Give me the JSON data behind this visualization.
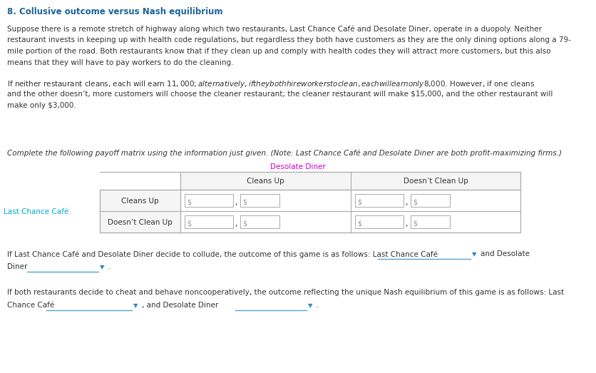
{
  "title": "8. Collusive outcome versus Nash equilibrium",
  "title_color": "#1a6496",
  "title_fontsize": 8.5,
  "background_color": "#ffffff",
  "body_text_color": "#333333",
  "body_fontsize": 7.5,
  "paragraph1_lines": [
    "Suppose there is a remote stretch of highway along which two restaurants, Last Chance Café and Desolate Diner, operate in a duopoly. Neither",
    "restaurant invests in keeping up with health code regulations, but regardless they both have customers as they are the only dining options along a 79-",
    "mile portion of the road. Both restaurants know that if they clean up and comply with health codes they will attract more customers, but this also",
    "means that they will have to pay workers to do the cleaning."
  ],
  "paragraph2_lines": [
    "If neither restaurant cleans, each will earn $11,000; alternatively, if they both hire workers to clean, each will earn only $8,000. However, if one cleans",
    "and the other doesn’t, more customers will choose the cleaner restaurant; the cleaner restaurant will make $15,000, and the other restaurant will",
    "make only $3,000."
  ],
  "matrix_intro_line": "Complete the following payoff matrix using the information just given. (Note: Last Chance Café and Desolate Diner are both profit-maximizing firms.)",
  "desolate_diner_label": "Desolate Diner",
  "desolate_diner_color": "#cc00cc",
  "last_chance_label": "Last Chance Café",
  "last_chance_color": "#00aacc",
  "col_headers": [
    "Cleans Up",
    "Doesn’t Clean Up"
  ],
  "row_headers": [
    "Cleans Up",
    "Doesn’t Clean Up"
  ],
  "collude_line1": "If Last Chance Café and Desolate Diner decide to collude, the outcome of this game is as follows: Last Chance Café",
  "collude_line1_end": "and Desolate",
  "collude_line2_start": "Diner",
  "collude_line2_dot": ".",
  "nash_line1": "If both restaurants decide to cheat and behave noncooperatively, the outcome reflecting the unique Nash equilibrium of this game is as follows: Last",
  "nash_line2_start": "Chance Café",
  "nash_line2_mid": ", and Desolate Diner",
  "nash_line2_dot": ".",
  "dropdown_color": "#2e86c1",
  "underline_color": "#5aa0d0",
  "table_border_color": "#aaaaaa",
  "input_border": "#aaaaaa"
}
